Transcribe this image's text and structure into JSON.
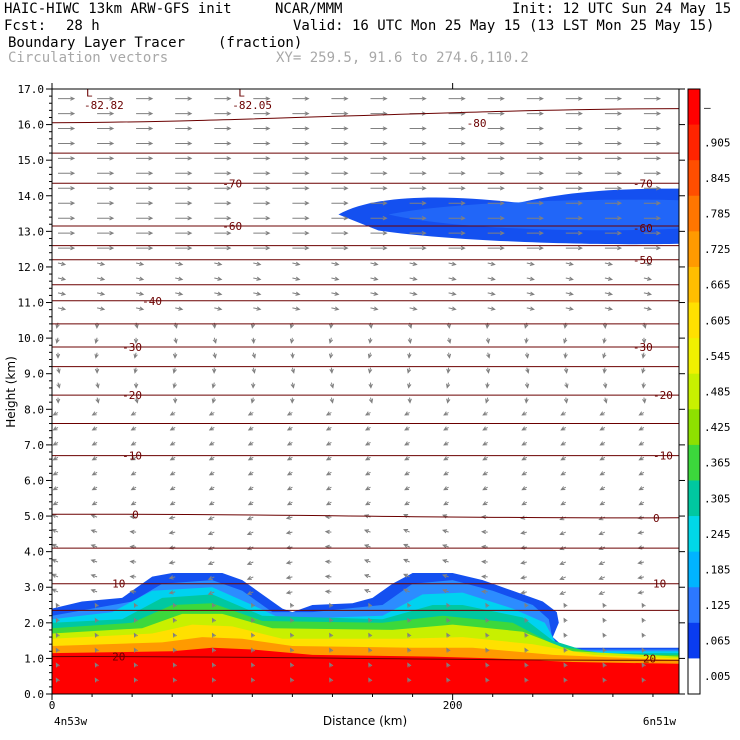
{
  "header": {
    "model": "HAIC-HIWC 13km ARW-GFS init",
    "org": "NCAR/MMM",
    "init": "Init: 12 UTC Sun 24 May 15",
    "fcst_label": "Fcst:",
    "fcst_value": "28 h",
    "valid": "Valid: 16 UTC Mon 25 May 15 (13 LST Mon 25 May 15)",
    "field": "Boundary Layer Tracer",
    "field_units": "(fraction)",
    "overlay": "Circulation vectors",
    "xy": "XY= 259.5, 91.6 to 274.6,110.2"
  },
  "chart_data": {
    "type": "heatmap",
    "title": "Boundary Layer Tracer",
    "ylabel": "Height (km)",
    "xlabel": "Distance (km)",
    "ylim": [
      0,
      17
    ],
    "xlim": [
      0,
      313
    ],
    "yticks": [
      "0.0",
      "1.0",
      "2.0",
      "3.0",
      "4.0",
      "5.0",
      "6.0",
      "7.0",
      "8.0",
      "9.0",
      "10.0",
      "11.0",
      "12.0",
      "13.0",
      "14.0",
      "15.0",
      "16.0",
      "17.0"
    ],
    "xticks": [
      {
        "value": 0,
        "label": "0"
      },
      {
        "value": 200,
        "label": "200"
      }
    ],
    "x_endpoints": [
      "4n53w",
      "6n51w"
    ],
    "colorbar_labels": [
      "–",
      ".905",
      ".845",
      ".785",
      ".725",
      ".665",
      ".605",
      ".545",
      ".485",
      ".425",
      ".365",
      ".305",
      ".245",
      ".185",
      ".125",
      ".065",
      ".005"
    ],
    "colorbar_colors": [
      "#ff0000",
      "#ff2400",
      "#ff4e00",
      "#ff7600",
      "#ff9a00",
      "#ffbe00",
      "#ffe000",
      "#f0f000",
      "#c8f000",
      "#8ee000",
      "#3cd83c",
      "#00c8a0",
      "#00d8e8",
      "#00b4ff",
      "#2c78ff",
      "#0a3cf0",
      "#ffffff"
    ],
    "bl_layers": [
      {
        "color": "#1450f0",
        "top": [
          [
            0,
            2.4
          ],
          [
            15,
            2.6
          ],
          [
            35,
            2.7
          ],
          [
            50,
            3.3
          ],
          [
            60,
            3.4
          ],
          [
            85,
            3.4
          ],
          [
            95,
            3.2
          ],
          [
            105,
            2.8
          ],
          [
            115,
            2.4
          ],
          [
            120,
            2.3
          ],
          [
            130,
            2.5
          ],
          [
            150,
            2.55
          ],
          [
            160,
            2.7
          ],
          [
            170,
            3.1
          ],
          [
            180,
            3.4
          ],
          [
            200,
            3.4
          ],
          [
            215,
            3.2
          ],
          [
            230,
            2.9
          ],
          [
            245,
            2.6
          ],
          [
            252,
            2.3
          ],
          [
            253,
            2.0
          ],
          [
            250,
            1.6
          ],
          [
            256,
            1.3
          ],
          [
            313,
            1.3
          ]
        ]
      },
      {
        "color": "#2c8cff",
        "top": [
          [
            0,
            2.2
          ],
          [
            20,
            2.4
          ],
          [
            40,
            2.6
          ],
          [
            55,
            3.1
          ],
          [
            80,
            3.2
          ],
          [
            95,
            2.9
          ],
          [
            110,
            2.3
          ],
          [
            130,
            2.3
          ],
          [
            165,
            2.5
          ],
          [
            180,
            3.1
          ],
          [
            200,
            3.2
          ],
          [
            220,
            2.9
          ],
          [
            240,
            2.5
          ],
          [
            248,
            2.1
          ],
          [
            250,
            1.5
          ],
          [
            260,
            1.25
          ],
          [
            313,
            1.25
          ]
        ]
      },
      {
        "color": "#00d2f0",
        "top": [
          [
            0,
            2.1
          ],
          [
            30,
            2.3
          ],
          [
            50,
            2.9
          ],
          [
            80,
            3.0
          ],
          [
            100,
            2.5
          ],
          [
            115,
            2.1
          ],
          [
            165,
            2.2
          ],
          [
            185,
            2.8
          ],
          [
            205,
            2.85
          ],
          [
            230,
            2.4
          ],
          [
            246,
            2.0
          ],
          [
            252,
            1.4
          ],
          [
            265,
            1.2
          ],
          [
            313,
            1.2
          ]
        ]
      },
      {
        "color": "#00c8a0",
        "top": [
          [
            0,
            2.0
          ],
          [
            35,
            2.1
          ],
          [
            55,
            2.7
          ],
          [
            80,
            2.8
          ],
          [
            105,
            2.2
          ],
          [
            165,
            2.1
          ],
          [
            190,
            2.5
          ],
          [
            205,
            2.5
          ],
          [
            235,
            2.15
          ],
          [
            250,
            1.5
          ],
          [
            270,
            1.15
          ],
          [
            313,
            1.15
          ]
        ]
      },
      {
        "color": "#3cd83c",
        "top": [
          [
            0,
            1.85
          ],
          [
            40,
            2.0
          ],
          [
            60,
            2.5
          ],
          [
            80,
            2.55
          ],
          [
            105,
            2.05
          ],
          [
            165,
            2.0
          ],
          [
            195,
            2.2
          ],
          [
            230,
            2.0
          ],
          [
            252,
            1.35
          ],
          [
            280,
            1.1
          ],
          [
            313,
            1.1
          ]
        ]
      },
      {
        "color": "#c8f000",
        "top": [
          [
            0,
            1.7
          ],
          [
            45,
            1.85
          ],
          [
            65,
            2.25
          ],
          [
            85,
            2.25
          ],
          [
            110,
            1.85
          ],
          [
            170,
            1.8
          ],
          [
            200,
            1.95
          ],
          [
            235,
            1.75
          ],
          [
            260,
            1.2
          ],
          [
            313,
            1.05
          ]
        ]
      },
      {
        "color": "#ffe000",
        "top": [
          [
            0,
            1.55
          ],
          [
            50,
            1.7
          ],
          [
            70,
            1.95
          ],
          [
            90,
            1.9
          ],
          [
            115,
            1.55
          ],
          [
            175,
            1.55
          ],
          [
            205,
            1.6
          ],
          [
            240,
            1.4
          ],
          [
            270,
            1.1
          ],
          [
            313,
            1.0
          ]
        ]
      },
      {
        "color": "#ff9a00",
        "top": [
          [
            0,
            1.35
          ],
          [
            55,
            1.45
          ],
          [
            75,
            1.6
          ],
          [
            95,
            1.55
          ],
          [
            120,
            1.35
          ],
          [
            180,
            1.3
          ],
          [
            210,
            1.3
          ],
          [
            250,
            1.1
          ],
          [
            313,
            0.95
          ]
        ]
      },
      {
        "color": "#ff0000",
        "top": [
          [
            0,
            1.15
          ],
          [
            60,
            1.2
          ],
          [
            80,
            1.3
          ],
          [
            100,
            1.25
          ],
          [
            130,
            1.1
          ],
          [
            190,
            1.05
          ],
          [
            220,
            1.0
          ],
          [
            260,
            0.9
          ],
          [
            313,
            0.85
          ]
        ]
      }
    ],
    "upper_blob": {
      "color": "#1450f0",
      "inner_color": "#2c78ff",
      "x_start": 143,
      "x_end": 313,
      "bottom_km": 12.65,
      "top_km": 14.2
    },
    "temperature_contours": [
      {
        "value": -80,
        "label": "-80",
        "y_km": [
          16.05,
          16.45
        ],
        "label_x": 207
      },
      {
        "value": -70,
        "label": "-70",
        "y_km": [
          14.35,
          14.35
        ],
        "label_x": 85
      },
      {
        "value": -60,
        "label": "-60",
        "y_km": [
          13.15,
          13.15
        ],
        "label_x": 85
      },
      {
        "value": -50,
        "label": "-50",
        "y_km": [
          12.2,
          12.2
        ],
        "label_x": 290
      },
      {
        "value": -40,
        "label": "-40",
        "y_km": [
          11.05,
          11.05
        ],
        "label_x": 45
      },
      {
        "value": -30,
        "label": "-30",
        "y_km": [
          9.75,
          9.75
        ],
        "label_x": 35
      },
      {
        "value": -20,
        "label": "-20",
        "y_km": [
          8.4,
          8.4
        ],
        "label_x": 35
      },
      {
        "value": -10,
        "label": "-10",
        "y_km": [
          6.7,
          6.7
        ],
        "label_x": 35
      },
      {
        "value": 0,
        "label": "0",
        "y_km": [
          5.05,
          4.95
        ],
        "label_x": 40
      },
      {
        "value": 10,
        "label": "10",
        "y_km": [
          3.1,
          3.1
        ],
        "label_x": 30
      },
      {
        "value": 20,
        "label": "20",
        "y_km": [
          1.05,
          0.95
        ],
        "label_x": 30
      }
    ],
    "extra_isotherms_km": [
      15.2,
      12.6,
      11.5,
      10.4,
      9.2,
      7.6,
      4.1,
      2.35
    ],
    "contour_color": "#6b0000",
    "side_labels": [
      {
        "text": "-82.82",
        "x": 16,
        "y_km": 16.55
      },
      {
        "text": "-82.05",
        "x": 90,
        "y_km": 16.55
      },
      {
        "text": "-70",
        "x": 290,
        "y_km": 14.35
      },
      {
        "text": "-60",
        "x": 290,
        "y_km": 13.1
      },
      {
        "text": "-30",
        "x": 290,
        "y_km": 9.75
      },
      {
        "text": "-20",
        "x": 300,
        "y_km": 8.4
      },
      {
        "text": "-10",
        "x": 300,
        "y_km": 6.7
      },
      {
        "text": "0",
        "x": 300,
        "y_km": 4.95
      },
      {
        "text": "10",
        "x": 300,
        "y_km": 3.1
      },
      {
        "text": "20",
        "x": 295,
        "y_km": 1.0
      }
    ],
    "low_markers": [
      {
        "text": "L",
        "x": 17,
        "y_km": 16.9
      },
      {
        "text": "L",
        "x": 93,
        "y_km": 16.9
      }
    ],
    "vector_color": "#808080"
  }
}
